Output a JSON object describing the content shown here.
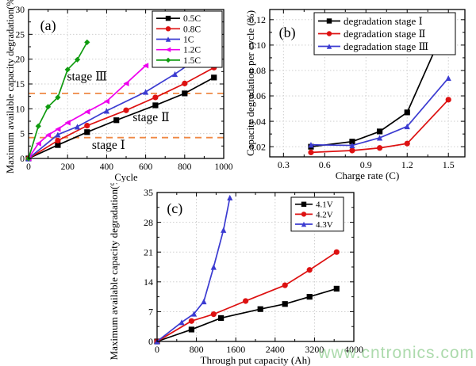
{
  "watermark": {
    "text": "www.cntronics.com",
    "color": "#9ed49e"
  },
  "chart_data": [
    {
      "id": "a",
      "type": "line",
      "panel_label": "(a)",
      "xlabel": "Cycle",
      "ylabel": "Maximum available capacity degradation(%)",
      "xlim": [
        0,
        1000
      ],
      "ylim": [
        0,
        30
      ],
      "xticks": {
        "values": [
          0,
          200,
          400,
          600,
          800,
          1000
        ],
        "labels": [
          "0",
          "200",
          "400",
          "600",
          "800",
          "1000"
        ]
      },
      "yticks": {
        "values": [
          0,
          5,
          10,
          15,
          20,
          25,
          30
        ],
        "labels": [
          "0",
          "5",
          "10",
          "15",
          "20",
          "25",
          "30"
        ]
      },
      "grid": "dotted",
      "legend_position": "top-right",
      "series": [
        {
          "name": "0.5C",
          "color": "#000000",
          "marker": "square",
          "x": [
            0,
            150,
            300,
            450,
            650,
            800,
            950
          ],
          "y": [
            0,
            2.7,
            5.3,
            7.7,
            10.7,
            13.1,
            16.3
          ]
        },
        {
          "name": "0.8C",
          "color": "#dd1111",
          "marker": "circle",
          "x": [
            0,
            150,
            300,
            500,
            650,
            800,
            950
          ],
          "y": [
            0,
            3.6,
            6.6,
            9.7,
            12.3,
            15.1,
            18.3
          ]
        },
        {
          "name": "1C",
          "color": "#3b3bd1",
          "marker": "triangle-up",
          "x": [
            0,
            150,
            250,
            400,
            600,
            750,
            900
          ],
          "y": [
            0,
            4.8,
            6.4,
            9.6,
            13.4,
            17.0,
            21.0
          ]
        },
        {
          "name": "1.2C",
          "color": "#ee00ee",
          "marker": "triangle-left",
          "x": [
            0,
            50,
            100,
            150,
            200,
            300,
            400,
            500,
            600
          ],
          "y": [
            0,
            3.0,
            4.7,
            5.9,
            7.2,
            9.4,
            11.5,
            15.1,
            18.7
          ]
        },
        {
          "name": "1.5C",
          "color": "#0f9b0f",
          "marker": "diamond",
          "x": [
            0,
            50,
            100,
            150,
            200,
            250,
            300
          ],
          "y": [
            0,
            6.5,
            10.4,
            12.3,
            17.9,
            19.9,
            23.4
          ]
        }
      ],
      "reference_lines": [
        {
          "y": 13.1,
          "color": "#ef8844",
          "style": "dashed"
        },
        {
          "y": 4.2,
          "color": "#ef8844",
          "style": "dashed"
        }
      ],
      "annotations": [
        {
          "text": "stage Ⅲ",
          "x": 300,
          "y": 15.7
        },
        {
          "text": "stage Ⅱ",
          "x": 628,
          "y": 7.5
        },
        {
          "text": "stage Ⅰ",
          "x": 410,
          "y": 1.9
        }
      ],
      "panel_label_pos": {
        "fx": 0.1,
        "fy": 0.1
      }
    },
    {
      "id": "b",
      "type": "line",
      "panel_label": "(b)",
      "xlabel": "Charge rate (C)",
      "ylabel": "Capacity degradation per cycle (%)",
      "xlim": [
        0.2,
        1.62
      ],
      "ylim": [
        0.012,
        0.128
      ],
      "xticks": {
        "values": [
          0.3,
          0.6,
          0.9,
          1.2,
          1.5
        ],
        "labels": [
          "0.3",
          "0.6",
          "0.9",
          "1.2",
          "1.5"
        ]
      },
      "yticks": {
        "values": [
          0.02,
          0.04,
          0.06,
          0.08,
          0.1,
          0.12
        ],
        "labels": [
          "0.02",
          "0.04",
          "0.06",
          "0.08",
          "0.10",
          "0.12"
        ]
      },
      "grid": "dotted",
      "legend_position": "top-right",
      "series": [
        {
          "name": "degradation stage Ⅰ",
          "color": "#000000",
          "marker": "square",
          "x": [
            0.5,
            0.8,
            1.0,
            1.2,
            1.5
          ],
          "y": [
            0.02,
            0.024,
            0.032,
            0.047,
            0.12
          ]
        },
        {
          "name": "degradation stage Ⅱ",
          "color": "#dd1111",
          "marker": "circle",
          "x": [
            0.5,
            0.8,
            1.0,
            1.2,
            1.5
          ],
          "y": [
            0.0155,
            0.017,
            0.019,
            0.0225,
            0.057
          ]
        },
        {
          "name": "degradation stage Ⅲ",
          "color": "#3b3bd1",
          "marker": "triangle-up",
          "x": [
            0.5,
            0.8,
            1.0,
            1.2,
            1.5
          ],
          "y": [
            0.0215,
            0.021,
            0.027,
            0.036,
            0.074
          ]
        }
      ],
      "reference_lines": [],
      "annotations": [],
      "panel_label_pos": {
        "fx": 0.09,
        "fy": 0.15
      }
    },
    {
      "id": "c",
      "type": "line",
      "panel_label": "(c)",
      "xlabel": "Through put capacity (Ah)",
      "ylabel": "Maximum available capacity degradation(%)",
      "xlim": [
        0,
        4000
      ],
      "ylim": [
        0,
        35
      ],
      "xticks": {
        "values": [
          0,
          800,
          1600,
          2400,
          3200,
          4000
        ],
        "labels": [
          "0",
          "800",
          "1600",
          "2400",
          "3200",
          "4000"
        ]
      },
      "yticks": {
        "values": [
          0,
          7,
          14,
          21,
          28,
          35
        ],
        "labels": [
          "0",
          "7",
          "14",
          "21",
          "28",
          "35"
        ]
      },
      "grid": "dotted",
      "legend_position": "top-right",
      "series": [
        {
          "name": "4.1V",
          "color": "#000000",
          "marker": "square",
          "x": [
            0,
            700,
            1300,
            2100,
            2600,
            3100,
            3650
          ],
          "y": [
            0,
            2.8,
            5.5,
            7.6,
            8.8,
            10.5,
            12.4
          ]
        },
        {
          "name": "4.2V",
          "color": "#dd1111",
          "marker": "circle",
          "x": [
            0,
            700,
            1150,
            1800,
            2600,
            3100,
            3650
          ],
          "y": [
            0,
            4.8,
            6.4,
            9.5,
            13.2,
            16.8,
            21.0
          ]
        },
        {
          "name": "4.3V",
          "color": "#3b3bd1",
          "marker": "triangle-up",
          "x": [
            0,
            500,
            750,
            950,
            1150,
            1350,
            1480
          ],
          "y": [
            0,
            4.5,
            6.5,
            9.4,
            17.5,
            26.2,
            33.8
          ]
        }
      ],
      "reference_lines": [],
      "annotations": [],
      "panel_label_pos": {
        "fx": 0.09,
        "fy": 0.1
      }
    }
  ]
}
